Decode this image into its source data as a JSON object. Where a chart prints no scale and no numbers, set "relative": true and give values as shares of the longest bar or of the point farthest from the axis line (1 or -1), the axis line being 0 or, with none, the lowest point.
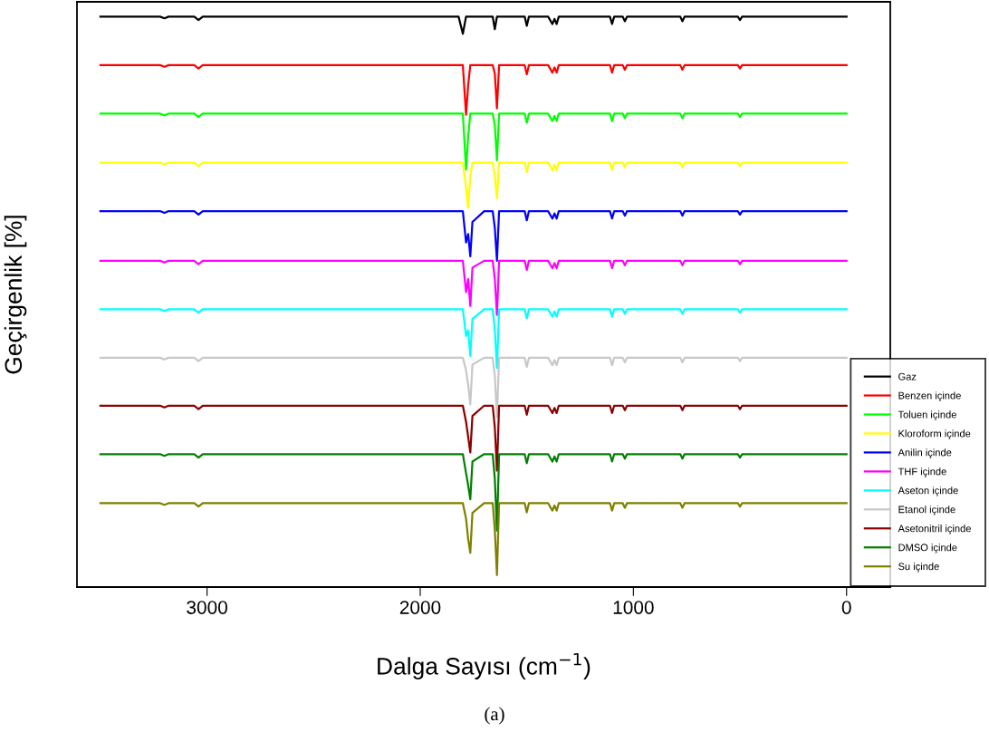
{
  "chart_data": {
    "type": "line",
    "relative": true,
    "xlabel": "Dalga Sayısı (cm$^{−1}$)",
    "ylabel": "Geçirgenlik [%]",
    "annotations": [
      "(a)"
    ],
    "xlim": [
      3610,
      -205
    ],
    "xticks": [
      3000,
      2000,
      1000,
      0
    ],
    "tick_labels": "x",
    "legend": "bottom right",
    "marker": "none",
    "line_style": "solid",
    "x": [
      3500,
      3220,
      3200,
      3180,
      3060,
      3040,
      3020,
      1900,
      1820,
      1800,
      1785,
      1775,
      1765,
      1755,
      1700,
      1660,
      1650,
      1640,
      1630,
      1560,
      1510,
      1500,
      1490,
      1400,
      1380,
      1370,
      1360,
      1350,
      1200,
      1110,
      1100,
      1090,
      1050,
      1040,
      1030,
      780,
      770,
      760,
      510,
      500,
      490,
      0
    ],
    "series": [
      {
        "name": "Gaz",
        "color": "#000000",
        "values": [
          1,
          1,
          0.997,
          1,
          1,
          0.994,
          1,
          1,
          1,
          0.97,
          1,
          1,
          1,
          1,
          1,
          1,
          0.978,
          1,
          1,
          1,
          1,
          0.984,
          1,
          1,
          0.987,
          0.996,
          0.987,
          1,
          1,
          1,
          0.987,
          1,
          1,
          0.992,
          1,
          1,
          0.992,
          1,
          1,
          0.994,
          1,
          1
        ]
      },
      {
        "name": "Benzen içinde",
        "color": "#ff0000",
        "values": [
          0.915,
          0.915,
          0.912,
          0.915,
          0.915,
          0.909,
          0.915,
          0.915,
          0.915,
          0.915,
          0.828,
          0.88,
          0.915,
          0.915,
          0.915,
          0.915,
          0.9,
          0.839,
          0.915,
          0.915,
          0.915,
          0.899,
          0.915,
          0.915,
          0.902,
          0.911,
          0.902,
          0.915,
          0.915,
          0.915,
          0.902,
          0.915,
          0.915,
          0.907,
          0.915,
          0.915,
          0.907,
          0.915,
          0.915,
          0.909,
          0.915,
          0.915
        ]
      },
      {
        "name": "Toluen içinde",
        "color": "#00ff00",
        "values": [
          0.83,
          0.83,
          0.827,
          0.83,
          0.83,
          0.824,
          0.83,
          0.83,
          0.83,
          0.83,
          0.732,
          0.79,
          0.83,
          0.83,
          0.83,
          0.83,
          0.81,
          0.748,
          0.83,
          0.83,
          0.83,
          0.814,
          0.83,
          0.83,
          0.817,
          0.826,
          0.817,
          0.83,
          0.83,
          0.83,
          0.817,
          0.83,
          0.83,
          0.822,
          0.83,
          0.83,
          0.822,
          0.83,
          0.83,
          0.824,
          0.83,
          0.83
        ]
      },
      {
        "name": "Kloroform içinde",
        "color": "#ffff00",
        "values": [
          0.744,
          0.744,
          0.741,
          0.744,
          0.744,
          0.738,
          0.744,
          0.744,
          0.744,
          0.744,
          0.7,
          0.665,
          0.72,
          0.744,
          0.744,
          0.744,
          0.72,
          0.681,
          0.744,
          0.744,
          0.744,
          0.728,
          0.744,
          0.744,
          0.731,
          0.74,
          0.731,
          0.744,
          0.744,
          0.744,
          0.731,
          0.744,
          0.744,
          0.736,
          0.744,
          0.744,
          0.736,
          0.744,
          0.744,
          0.738,
          0.744,
          0.744
        ]
      },
      {
        "name": "Anilin içinde",
        "color": "#0000ff",
        "values": [
          0.659,
          0.659,
          0.656,
          0.659,
          0.659,
          0.653,
          0.659,
          0.659,
          0.659,
          0.659,
          0.604,
          0.619,
          0.58,
          0.64,
          0.659,
          0.659,
          0.63,
          0.572,
          0.659,
          0.659,
          0.659,
          0.643,
          0.659,
          0.659,
          0.646,
          0.655,
          0.646,
          0.659,
          0.659,
          0.659,
          0.646,
          0.659,
          0.659,
          0.651,
          0.659,
          0.659,
          0.651,
          0.659,
          0.659,
          0.653,
          0.659,
          0.659
        ]
      },
      {
        "name": "THF içinde",
        "color": "#ff00ff",
        "values": [
          0.572,
          0.572,
          0.569,
          0.572,
          0.572,
          0.566,
          0.572,
          0.572,
          0.572,
          0.572,
          0.517,
          0.54,
          0.493,
          0.56,
          0.572,
          0.572,
          0.54,
          0.477,
          0.572,
          0.572,
          0.572,
          0.556,
          0.572,
          0.572,
          0.559,
          0.568,
          0.559,
          0.572,
          0.572,
          0.572,
          0.559,
          0.572,
          0.572,
          0.564,
          0.572,
          0.572,
          0.564,
          0.572,
          0.572,
          0.566,
          0.572,
          0.572
        ]
      },
      {
        "name": "Aseton içinde",
        "color": "#00ffff",
        "values": [
          0.487,
          0.487,
          0.484,
          0.487,
          0.487,
          0.481,
          0.487,
          0.487,
          0.487,
          0.487,
          0.44,
          0.45,
          0.405,
          0.47,
          0.487,
          0.487,
          0.45,
          0.384,
          0.487,
          0.487,
          0.487,
          0.471,
          0.487,
          0.487,
          0.474,
          0.483,
          0.474,
          0.487,
          0.487,
          0.487,
          0.474,
          0.487,
          0.487,
          0.479,
          0.487,
          0.487,
          0.479,
          0.487,
          0.487,
          0.481,
          0.487,
          0.487
        ]
      },
      {
        "name": "Etanol içinde",
        "color": "#c8c8c8",
        "values": [
          0.402,
          0.402,
          0.399,
          0.402,
          0.402,
          0.396,
          0.402,
          0.402,
          0.402,
          0.402,
          0.38,
          0.355,
          0.32,
          0.39,
          0.402,
          0.402,
          0.37,
          0.298,
          0.402,
          0.402,
          0.402,
          0.386,
          0.402,
          0.402,
          0.389,
          0.398,
          0.389,
          0.402,
          0.402,
          0.402,
          0.389,
          0.402,
          0.402,
          0.394,
          0.402,
          0.402,
          0.394,
          0.402,
          0.402,
          0.396,
          0.402,
          0.402
        ]
      },
      {
        "name": "Asetonitril içinde",
        "color": "#8b0000",
        "values": [
          0.318,
          0.318,
          0.315,
          0.318,
          0.318,
          0.312,
          0.318,
          0.318,
          0.318,
          0.318,
          0.29,
          0.263,
          0.236,
          0.3,
          0.318,
          0.318,
          0.28,
          0.204,
          0.318,
          0.318,
          0.318,
          0.302,
          0.318,
          0.318,
          0.305,
          0.314,
          0.305,
          0.318,
          0.318,
          0.318,
          0.305,
          0.318,
          0.318,
          0.31,
          0.318,
          0.318,
          0.31,
          0.318,
          0.318,
          0.312,
          0.318,
          0.318
        ]
      },
      {
        "name": "DMSO içinde",
        "color": "#008000",
        "values": [
          0.233,
          0.233,
          0.23,
          0.233,
          0.233,
          0.227,
          0.233,
          0.233,
          0.233,
          0.233,
          0.2,
          0.178,
          0.154,
          0.22,
          0.233,
          0.233,
          0.19,
          0.099,
          0.233,
          0.233,
          0.233,
          0.217,
          0.233,
          0.233,
          0.22,
          0.229,
          0.22,
          0.233,
          0.233,
          0.233,
          0.22,
          0.233,
          0.233,
          0.225,
          0.233,
          0.233,
          0.225,
          0.233,
          0.233,
          0.227,
          0.233,
          0.233
        ]
      },
      {
        "name": "Su içinde",
        "color": "#808000",
        "values": [
          0.147,
          0.147,
          0.144,
          0.147,
          0.147,
          0.141,
          0.147,
          0.147,
          0.147,
          0.147,
          0.12,
          0.084,
          0.06,
          0.13,
          0.147,
          0.147,
          0.1,
          0.021,
          0.147,
          0.147,
          0.147,
          0.131,
          0.147,
          0.147,
          0.134,
          0.143,
          0.134,
          0.147,
          0.147,
          0.147,
          0.134,
          0.147,
          0.147,
          0.139,
          0.147,
          0.147,
          0.139,
          0.147,
          0.147,
          0.141,
          0.147,
          0.147
        ]
      }
    ]
  }
}
